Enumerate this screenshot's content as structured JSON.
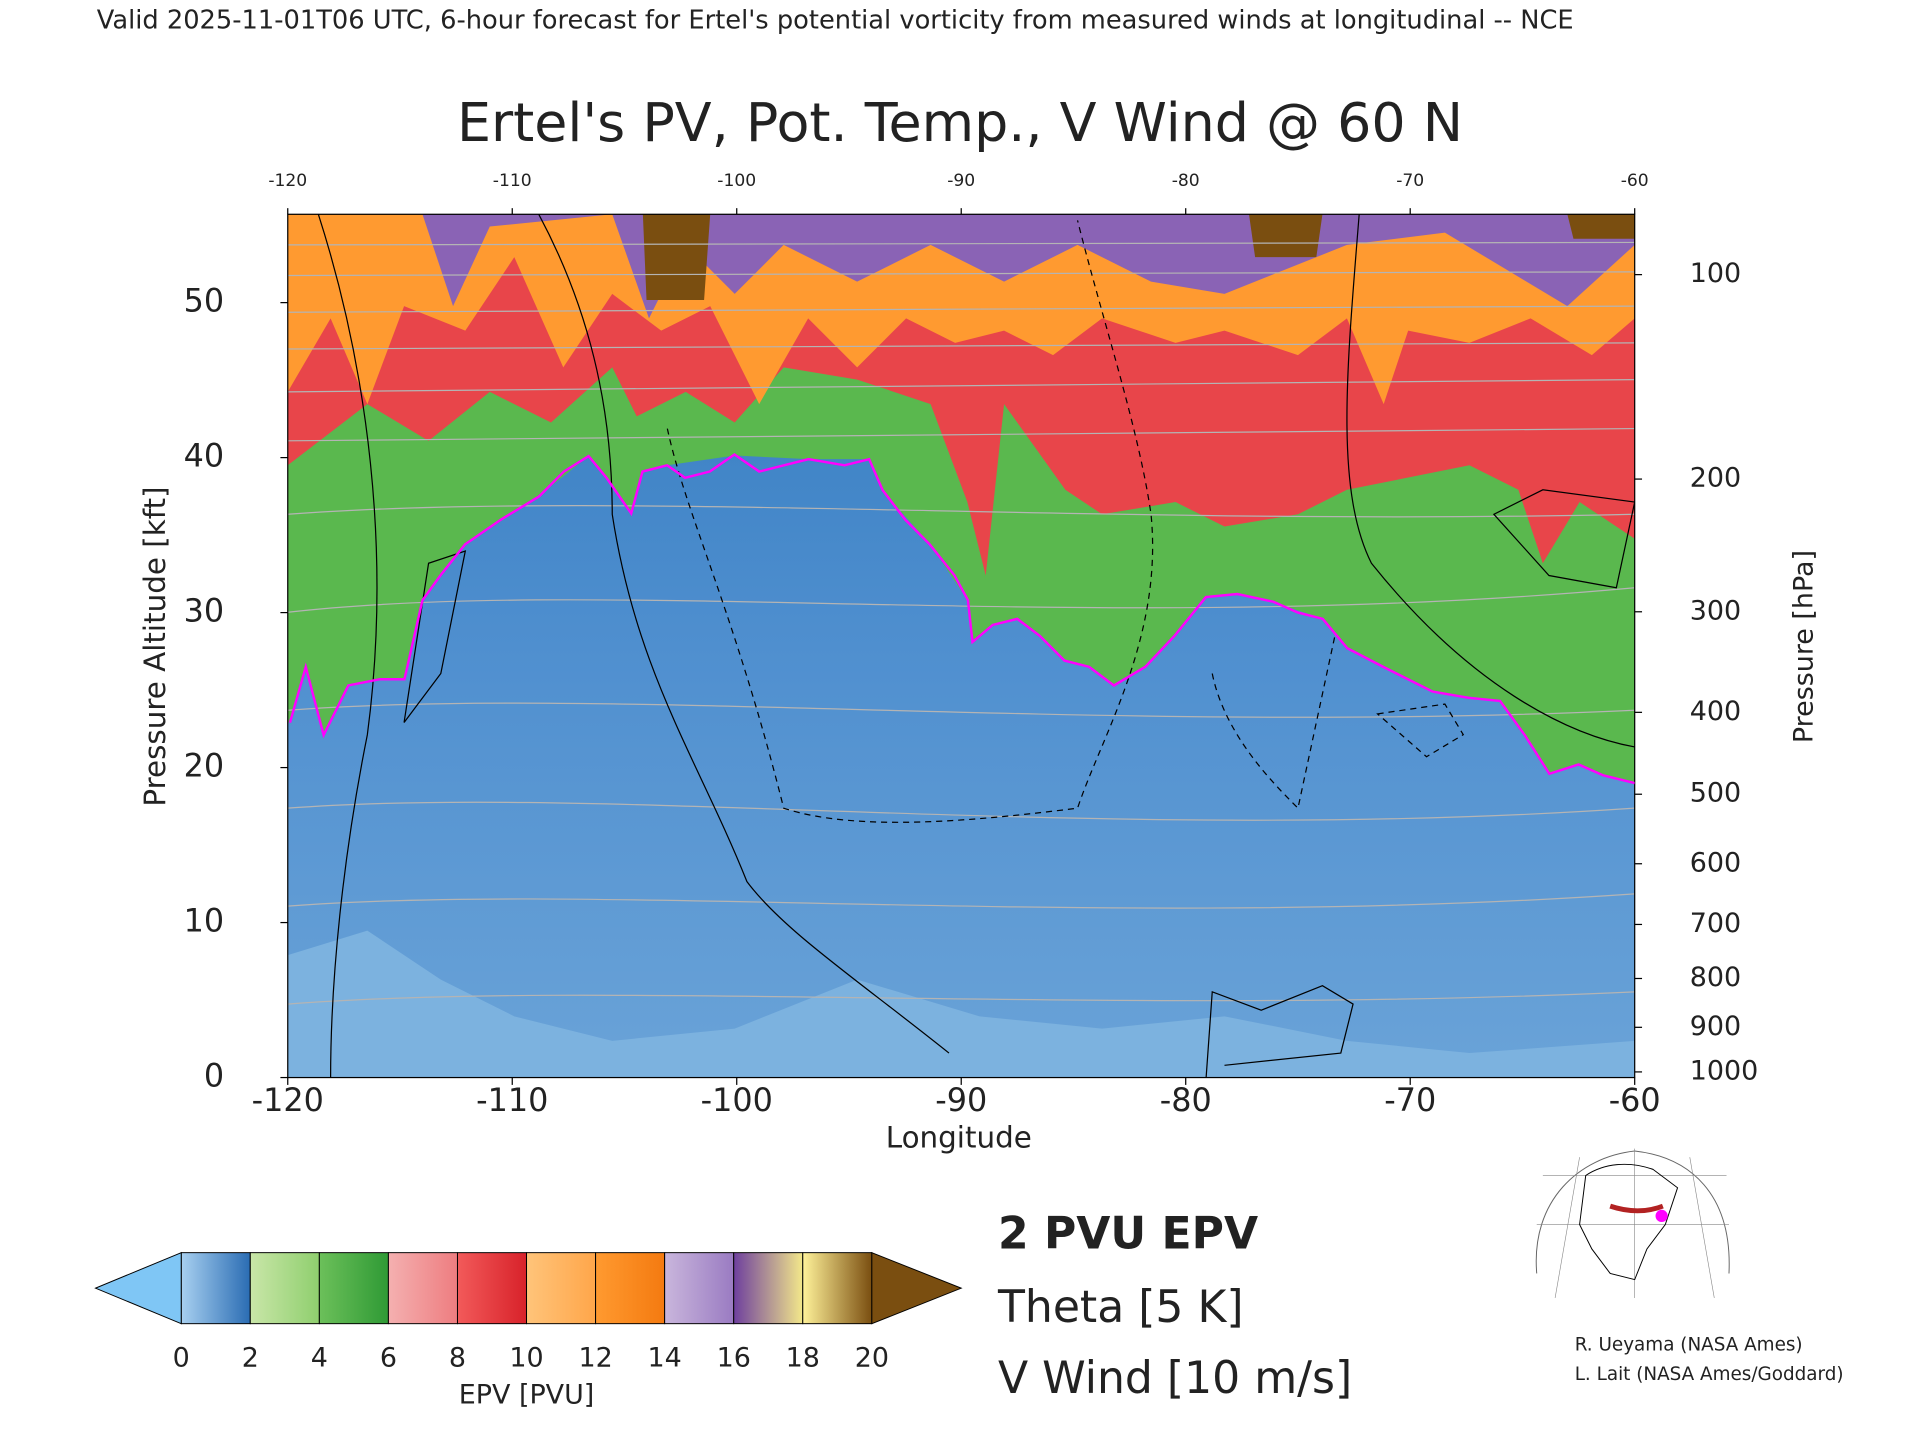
{
  "header": {
    "text": "Valid 2025-11-01T06 UTC, 6-hour forecast for Ertel's potential vorticity from measured winds at longitudinal -- NCE"
  },
  "chart_data": {
    "type": "cross-section",
    "title": "Ertel's PV, Pot. Temp., V Wind @ 60 N",
    "x_label": "Longitude",
    "y_label": "Pressure Altitude [kft]",
    "y2_label": "Pressure [hPa]",
    "xlim": [
      -120,
      -60
    ],
    "xticks": [
      -120,
      -110,
      -100,
      -90,
      -80,
      -70,
      -60
    ],
    "ylim": [
      0,
      55.7
    ],
    "yticks": [
      0,
      10,
      20,
      30,
      40,
      50
    ],
    "y2scale": "pressure_altitude",
    "y2ticks": [
      1000,
      900,
      800,
      700,
      600,
      500,
      400,
      300,
      200,
      100
    ],
    "pv2_contour": {
      "name": "2 PVU EPV",
      "color": "#ff00ff",
      "x": [
        -119.9,
        -119.2,
        -118.4,
        -117.3,
        -115.9,
        -114.8,
        -114.0,
        -113.2,
        -112.1,
        -110.5,
        -108.8,
        -107.7,
        -106.6,
        -105.8,
        -104.7,
        -104.2,
        -103.1,
        -102.3,
        -101.2,
        -100.1,
        -99.0,
        -97.9,
        -96.8,
        -95.2,
        -94.1,
        -93.5,
        -92.5,
        -91.4,
        -90.3,
        -89.7,
        -89.5,
        -88.6,
        -87.5,
        -86.5,
        -85.4,
        -84.3,
        -83.2,
        -81.8,
        -80.5,
        -79.1,
        -77.7,
        -76.1,
        -75.0,
        -73.9,
        -72.8,
        -71.2,
        -69.0,
        -67.4,
        -66.0,
        -64.9,
        -63.8,
        -62.5,
        -61.4,
        -60.0
      ],
      "y": [
        22.9,
        26.5,
        22.1,
        25.3,
        25.7,
        25.7,
        30.8,
        32.4,
        34.4,
        36.0,
        37.5,
        39.1,
        40.1,
        38.7,
        36.4,
        39.1,
        39.5,
        38.7,
        39.1,
        40.2,
        39.1,
        39.5,
        39.9,
        39.5,
        39.9,
        37.9,
        36.0,
        34.4,
        32.4,
        30.8,
        28.1,
        29.2,
        29.6,
        28.5,
        26.9,
        26.5,
        25.3,
        26.5,
        28.5,
        31.0,
        31.2,
        30.7,
        30.0,
        29.6,
        27.7,
        26.5,
        24.9,
        24.5,
        24.3,
        22.1,
        19.6,
        20.2,
        19.5,
        19.0
      ]
    },
    "theta": {
      "name": "Theta [5 K]",
      "color": "#b4b4b4"
    },
    "v_wind": {
      "name": "V Wind [10 m/s]",
      "color": "#000000"
    },
    "colorbar": {
      "label": "EPV [PVU]",
      "ticks": [
        0,
        2,
        4,
        6,
        8,
        10,
        12,
        14,
        16,
        18,
        20
      ],
      "under_color": "#7fc6f5",
      "over_color": "#7a4e10",
      "colors": [
        [
          "#a8d0f0",
          "#2a6cb3"
        ],
        [
          "#c9e6a8",
          "#8fcf6e"
        ],
        [
          "#6cc05a",
          "#2f9a35"
        ],
        [
          "#f4b0b0",
          "#ee7d80"
        ],
        [
          "#f25a5a",
          "#d8222a"
        ],
        [
          "#ffc47a",
          "#ffa64a"
        ],
        [
          "#ff9a30",
          "#f47a10"
        ],
        [
          "#c9b6dc",
          "#9a7bc2"
        ],
        [
          "#6e3f9e",
          "#f3e88a"
        ],
        [
          "#fff29a",
          "#7a4e10"
        ]
      ]
    }
  },
  "credits": [
    "R. Ueyama (NASA Ames)",
    "L. Lait (NASA Ames/Goddard)"
  ]
}
